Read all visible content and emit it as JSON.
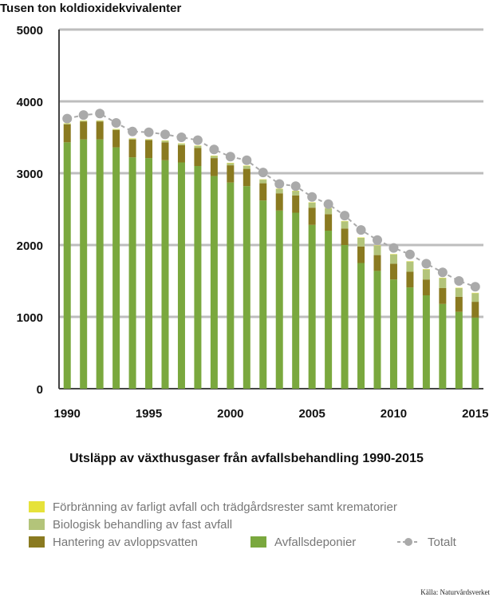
{
  "chart_data": {
    "type": "bar",
    "title": "Utsläpp av växthusgaser från avfallsbehandling 1990-2015",
    "ylabel": "Tusen ton koldioxidekvivalenter",
    "xlabel": "",
    "ylim": [
      0,
      5000
    ],
    "yticks": [
      0,
      1000,
      2000,
      3000,
      4000,
      5000
    ],
    "xtick_labels": [
      "1990",
      "1995",
      "2000",
      "2005",
      "2010",
      "2015"
    ],
    "stacked": true,
    "categories": [
      "1990",
      "1991",
      "1992",
      "1993",
      "1994",
      "1995",
      "1996",
      "1997",
      "1998",
      "1999",
      "2000",
      "2001",
      "2002",
      "2003",
      "2004",
      "2005",
      "2006",
      "2007",
      "2008",
      "2009",
      "2010",
      "2011",
      "2012",
      "2013",
      "2014",
      "2015"
    ],
    "series": [
      {
        "name": "Avfallsdeponier",
        "color": "#7aa83e",
        "values": [
          3430,
          3470,
          3470,
          3360,
          3220,
          3210,
          3180,
          3150,
          3100,
          2960,
          2870,
          2820,
          2620,
          2480,
          2450,
          2280,
          2200,
          2000,
          1750,
          1640,
          1520,
          1410,
          1300,
          1180,
          1070,
          990
        ]
      },
      {
        "name": "Hantering av avloppsvatten",
        "color": "#8a7a20",
        "values": [
          250,
          250,
          250,
          240,
          250,
          250,
          250,
          240,
          250,
          250,
          240,
          240,
          240,
          240,
          240,
          240,
          230,
          230,
          230,
          220,
          220,
          220,
          220,
          220,
          210,
          220
        ]
      },
      {
        "name": "Biologisk behandling av fast avfall",
        "color": "#b3c47a",
        "values": [
          10,
          10,
          10,
          10,
          10,
          10,
          20,
          20,
          30,
          30,
          30,
          40,
          50,
          60,
          60,
          70,
          80,
          100,
          120,
          130,
          130,
          140,
          140,
          140,
          120,
          120
        ]
      },
      {
        "name": "Förbränning av farligt avfall och trädgårdsrester samt krematorier",
        "color": "#e6e23a",
        "values": [
          5,
          5,
          5,
          5,
          5,
          5,
          5,
          5,
          5,
          5,
          5,
          5,
          5,
          5,
          5,
          5,
          5,
          5,
          5,
          5,
          5,
          5,
          5,
          5,
          5,
          5
        ]
      },
      {
        "name": "Totalt",
        "type": "line",
        "color": "#aaaaaa",
        "values": [
          3760,
          3810,
          3830,
          3700,
          3580,
          3570,
          3540,
          3500,
          3460,
          3330,
          3230,
          3180,
          3010,
          2850,
          2820,
          2670,
          2570,
          2410,
          2210,
          2070,
          1960,
          1870,
          1740,
          1620,
          1500,
          1420
        ]
      }
    ],
    "grid": true,
    "legend_placement": "bottom"
  },
  "legend": {
    "forbranning": "Förbränning av farligt avfall och trädgårdsrester samt krematorier",
    "biologisk": "Biologisk behandling av fast avfall",
    "hantering": "Hantering av avloppsvatten",
    "deponier": "Avfallsdeponier",
    "totalt": "Totalt"
  },
  "source": "Källa: Naturvårdsverket"
}
